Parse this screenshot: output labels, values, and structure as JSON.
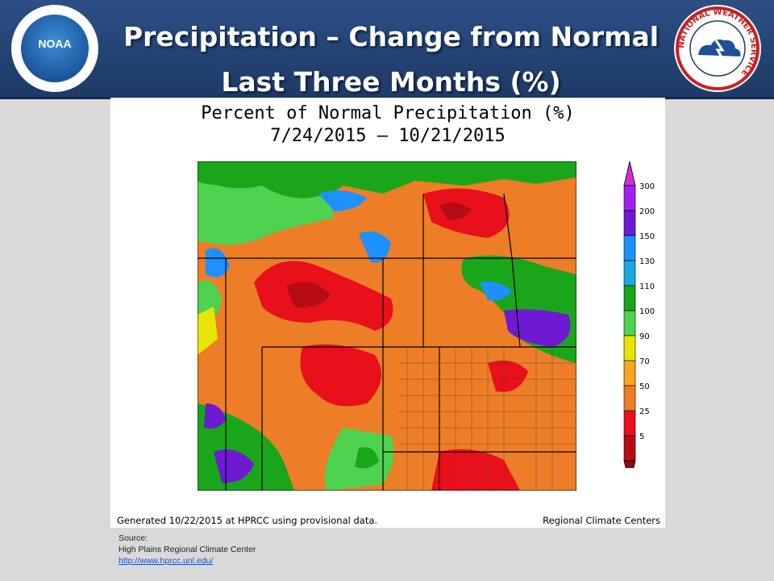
{
  "header": {
    "title_line1": "Precipitation – Change from Normal",
    "title_line2": "Last Three Months (%)",
    "left_logo": "noaa-logo",
    "right_logo": "nws-logo",
    "noaa_word": "NOAA",
    "nws_ring": "NATIONAL WEATHER SERVICE"
  },
  "map": {
    "title_line1": "Percent of Normal Precipitation (%)",
    "title_line2": "7/24/2015 – 10/21/2015",
    "footer_left": "Generated 10/22/2015 at HPRCC using provisional data.",
    "footer_right": "Regional Climate Centers"
  },
  "legend": {
    "labels": [
      "300",
      "200",
      "150",
      "130",
      "110",
      "100",
      "90",
      "70",
      "50",
      "25",
      "5"
    ],
    "colors": [
      "#a020f0",
      "#6e1ad2",
      "#1e90ff",
      "#18a8e0",
      "#1aa61a",
      "#4fd24f",
      "#e6e600",
      "#f5a623",
      "#ee7d27",
      "#e8101a",
      "#b50c16"
    ]
  },
  "source": {
    "label": "Source:",
    "org": "High Plains Regional Climate Center",
    "url": "http://www.hprcc.unl.edu/"
  }
}
